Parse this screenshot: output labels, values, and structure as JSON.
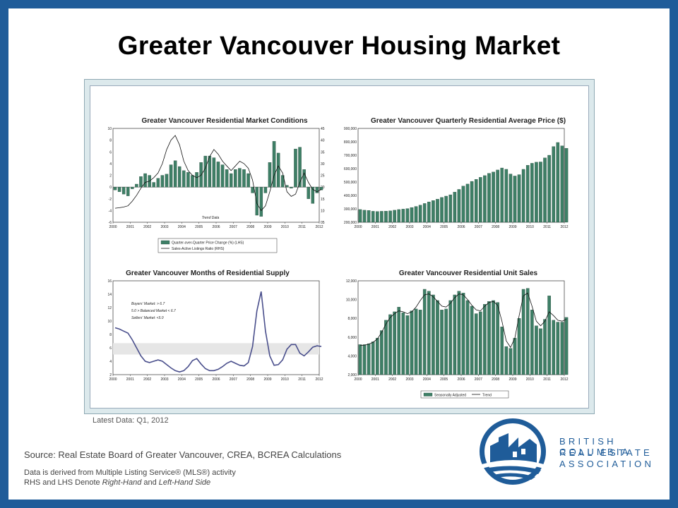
{
  "slide": {
    "title": "Greater Vancouver Housing Market",
    "latest_data": "Latest Data: Q1, 2012",
    "source": "Source: Real Estate Board of Greater Vancouver, CREA, BCREA Calculations",
    "footnote_line1": "Data is derived from Multiple Listing Service® (MLS®) activity",
    "footnote_line2_prefix": "RHS and LHS Denote ",
    "footnote_rhs": "Right-Hand",
    "footnote_and": " and ",
    "footnote_lhs": "Left-Hand Side",
    "logo_line1": "BRITISH COLUMBIA",
    "logo_line2": "REAL ESTATE",
    "logo_line3": "ASSOCIATION"
  },
  "colors": {
    "frame_blue": "#1f5c99",
    "bar_fill": "#3e7f66",
    "line_blue": "#4a4f8c",
    "band_gray": "#e6e6e6"
  },
  "chart_data": [
    {
      "type": "bar",
      "title": "Greater Vancouver Residential Market Conditions",
      "x_ticks": [
        "2000",
        "2001",
        "2002",
        "2003",
        "2004",
        "2005",
        "2006",
        "2007",
        "2008",
        "2009",
        "2010",
        "2011",
        "2012"
      ],
      "left_ticks": [
        "10",
        "8",
        "6",
        "4",
        "2",
        "0",
        "-2",
        "-4",
        "-6"
      ],
      "right_ticks": [
        "45",
        "40",
        "35",
        "30",
        "25",
        "20",
        "15",
        "10",
        "05"
      ],
      "ylim_left": [
        -6,
        10
      ],
      "ylim_right": [
        5,
        45
      ],
      "annotation": "Trend Data",
      "legend": [
        "Quarter-over-Quarter Price Change (%) (LHS)",
        "Sales-Active Listings Ratio (RHS)"
      ],
      "x": [
        2000.0,
        2000.25,
        2000.5,
        2000.75,
        2001.0,
        2001.25,
        2001.5,
        2001.75,
        2002.0,
        2002.25,
        2002.5,
        2002.75,
        2003.0,
        2003.25,
        2003.5,
        2003.75,
        2004.0,
        2004.25,
        2004.5,
        2004.75,
        2005.0,
        2005.25,
        2005.5,
        2005.75,
        2006.0,
        2006.25,
        2006.5,
        2006.75,
        2007.0,
        2007.25,
        2007.5,
        2007.75,
        2008.0,
        2008.25,
        2008.5,
        2008.75,
        2009.0,
        2009.25,
        2009.5,
        2009.75,
        2010.0,
        2010.25,
        2010.5,
        2010.75,
        2011.0,
        2011.25,
        2011.5,
        2011.75,
        2012.0
      ],
      "series": [
        {
          "axis": "left",
          "values": [
            -0.5,
            -0.8,
            -1.2,
            -1.5,
            -0.3,
            0.5,
            1.8,
            2.3,
            2.0,
            0.8,
            1.5,
            2.0,
            2.2,
            3.8,
            4.5,
            3.5,
            2.8,
            2.5,
            2.0,
            2.5,
            4.2,
            5.3,
            5.3,
            5.0,
            4.3,
            3.8,
            3.0,
            2.3,
            3.0,
            3.2,
            3.0,
            2.3,
            -1.0,
            -4.8,
            -5.0,
            -1.0,
            4.2,
            7.8,
            5.8,
            2.0,
            0.3,
            -0.2,
            6.5,
            6.8,
            3.0,
            -2.0,
            -2.8,
            -1.0,
            -0.5
          ]
        },
        {
          "axis": "right",
          "values": [
            11,
            11.2,
            11.5,
            12,
            14,
            16.5,
            19.5,
            22,
            22.5,
            24,
            26,
            30,
            36,
            40,
            42,
            38,
            31,
            27,
            25,
            24,
            25,
            28,
            33,
            36,
            34,
            31,
            29,
            27,
            29,
            31,
            30,
            28,
            23,
            13,
            10,
            12,
            18,
            25,
            29,
            26,
            18,
            16,
            17,
            22,
            26,
            22,
            19,
            18,
            19
          ]
        }
      ]
    },
    {
      "type": "bar",
      "title": "Greater Vancouver Quarterly Residential Average Price ($)",
      "x_ticks": [
        "2000",
        "2001",
        "2002",
        "2003",
        "2004",
        "2005",
        "2006",
        "2007",
        "2008",
        "2009",
        "2010",
        "2011",
        "2012"
      ],
      "y_ticks": [
        "900,000",
        "800,000",
        "700,000",
        "600,000",
        "500,000",
        "400,000",
        "300,000",
        "200,000"
      ],
      "ylim": [
        200000,
        900000
      ],
      "x": [
        2000.0,
        2000.25,
        2000.5,
        2000.75,
        2001.0,
        2001.25,
        2001.5,
        2001.75,
        2002.0,
        2002.25,
        2002.5,
        2002.75,
        2003.0,
        2003.25,
        2003.5,
        2003.75,
        2004.0,
        2004.25,
        2004.5,
        2004.75,
        2005.0,
        2005.25,
        2005.5,
        2005.75,
        2006.0,
        2006.25,
        2006.5,
        2006.75,
        2007.0,
        2007.25,
        2007.5,
        2007.75,
        2008.0,
        2008.25,
        2008.5,
        2008.75,
        2009.0,
        2009.25,
        2009.5,
        2009.75,
        2010.0,
        2010.25,
        2010.5,
        2010.75,
        2011.0,
        2011.25,
        2011.5,
        2011.75,
        2012.0
      ],
      "values": [
        295000,
        290000,
        288000,
        282000,
        280000,
        282000,
        283000,
        285000,
        290000,
        295000,
        298000,
        302000,
        310000,
        318000,
        328000,
        340000,
        352000,
        362000,
        372000,
        385000,
        395000,
        405000,
        425000,
        445000,
        470000,
        485000,
        505000,
        520000,
        535000,
        548000,
        565000,
        575000,
        590000,
        605000,
        595000,
        560000,
        545000,
        555000,
        595000,
        625000,
        640000,
        648000,
        650000,
        680000,
        700000,
        765000,
        795000,
        770000,
        752000
      ]
    },
    {
      "type": "line",
      "title": "Greater Vancouver Months of Residential Supply",
      "x_ticks": [
        "2000",
        "2001",
        "2002",
        "2003",
        "2004",
        "2005",
        "2006",
        "2007",
        "2008",
        "2009",
        "2010",
        "2011",
        "2012"
      ],
      "y_ticks": [
        "16",
        "14",
        "12",
        "10",
        "8",
        "6",
        "4",
        "2"
      ],
      "ylim": [
        2,
        16
      ],
      "band": [
        5.0,
        6.7
      ],
      "annotations": [
        "Buyers' Market: > 6.7",
        "5.0 > Balanced Market < 6.7",
        "Sellers' Market: <5.0"
      ],
      "x": [
        2000.0,
        2000.25,
        2000.5,
        2000.75,
        2001.0,
        2001.25,
        2001.5,
        2001.75,
        2002.0,
        2002.25,
        2002.5,
        2002.75,
        2003.0,
        2003.25,
        2003.5,
        2003.75,
        2004.0,
        2004.25,
        2004.5,
        2004.75,
        2005.0,
        2005.25,
        2005.5,
        2005.75,
        2006.0,
        2006.25,
        2006.5,
        2006.75,
        2007.0,
        2007.25,
        2007.5,
        2007.75,
        2008.0,
        2008.25,
        2008.5,
        2008.75,
        2009.0,
        2009.25,
        2009.5,
        2009.75,
        2010.0,
        2010.25,
        2010.5,
        2010.75,
        2011.0,
        2011.25,
        2011.5,
        2011.75,
        2012.0
      ],
      "values": [
        9.0,
        8.8,
        8.5,
        8.2,
        7.2,
        6.0,
        4.8,
        4.0,
        3.8,
        4.0,
        4.2,
        4.0,
        3.5,
        3.0,
        2.6,
        2.4,
        2.6,
        3.2,
        4.1,
        4.4,
        3.6,
        2.9,
        2.6,
        2.6,
        2.8,
        3.2,
        3.7,
        4.0,
        3.7,
        3.4,
        3.3,
        3.8,
        6.2,
        11.5,
        14.4,
        8.5,
        4.8,
        3.4,
        3.5,
        4.2,
        5.8,
        6.5,
        6.5,
        5.2,
        4.8,
        5.4,
        6.1,
        6.3,
        6.2
      ]
    },
    {
      "type": "bar",
      "title": "Greater Vancouver Residential Unit Sales",
      "x_ticks": [
        "2000",
        "2001",
        "2002",
        "2003",
        "2004",
        "2005",
        "2006",
        "2007",
        "2008",
        "2009",
        "2010",
        "2011",
        "2012"
      ],
      "y_ticks": [
        "12,000",
        "10,000",
        "8,000",
        "6,000",
        "4,000",
        "2,000"
      ],
      "ylim": [
        2000,
        12000
      ],
      "legend": [
        "Seasonally Adjusted",
        "Trend"
      ],
      "x": [
        2000.0,
        2000.25,
        2000.5,
        2000.75,
        2001.0,
        2001.25,
        2001.5,
        2001.75,
        2002.0,
        2002.25,
        2002.5,
        2002.75,
        2003.0,
        2003.25,
        2003.5,
        2003.75,
        2004.0,
        2004.25,
        2004.5,
        2004.75,
        2005.0,
        2005.25,
        2005.5,
        2005.75,
        2006.0,
        2006.25,
        2006.5,
        2006.75,
        2007.0,
        2007.25,
        2007.5,
        2007.75,
        2008.0,
        2008.25,
        2008.5,
        2008.75,
        2009.0,
        2009.25,
        2009.5,
        2009.75,
        2010.0,
        2010.25,
        2010.5,
        2010.75,
        2011.0,
        2011.25,
        2011.5,
        2011.75,
        2012.0
      ],
      "series": [
        {
          "name": "Seasonally Adjusted",
          "values": [
            5200,
            5200,
            5300,
            5500,
            5900,
            6700,
            7800,
            8400,
            8700,
            9200,
            8600,
            8300,
            8800,
            9000,
            8900,
            11100,
            10900,
            10500,
            9900,
            8900,
            9000,
            9900,
            10500,
            10900,
            10700,
            9900,
            9300,
            8500,
            8700,
            9500,
            9800,
            9900,
            9700,
            7100,
            5000,
            4800,
            5900,
            8000,
            11100,
            11200,
            8900,
            7200,
            6900,
            7900,
            10400,
            7800,
            7600,
            7600,
            8100
          ]
        },
        {
          "name": "Trend",
          "values": [
            5100,
            5150,
            5250,
            5450,
            5800,
            6500,
            7400,
            8100,
            8500,
            8800,
            8700,
            8500,
            8700,
            9200,
            9900,
            10500,
            10600,
            10300,
            9800,
            9300,
            9200,
            9600,
            10200,
            10600,
            10500,
            10000,
            9400,
            8900,
            8800,
            9300,
            9700,
            9800,
            9400,
            7700,
            5600,
            4900,
            5900,
            8300,
            10400,
            10700,
            9300,
            7700,
            7200,
            7700,
            8700,
            8300,
            7800,
            7700,
            7900
          ]
        }
      ]
    }
  ]
}
